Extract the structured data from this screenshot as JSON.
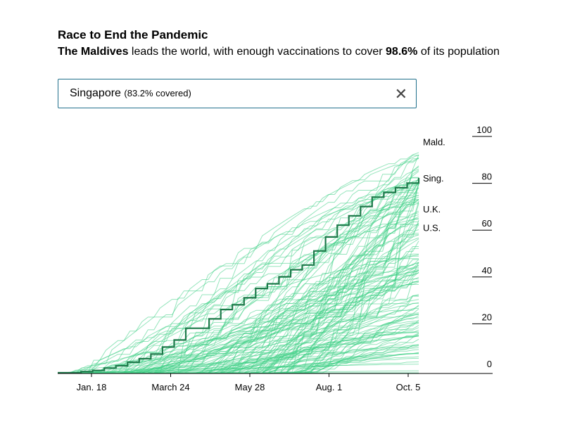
{
  "header": {
    "title": "Race to End the Pandemic",
    "subtitle_lead": "The Maldives",
    "subtitle_mid": " leads the world, with enough vaccinations to cover ",
    "subtitle_value": "98.6%",
    "subtitle_tail": " of its population"
  },
  "search": {
    "value": "Singapore",
    "detail": "(83.2% covered)",
    "close_icon": "close-icon"
  },
  "colors": {
    "background_lines": "#3ecf85",
    "highlight_line": "#1d7a4a",
    "axis": "#000000"
  },
  "chart_data": {
    "type": "line",
    "title": "Race to End the Pandemic",
    "x_tick_labels": [
      "Jan. 18",
      "March 24",
      "May 28",
      "Aug. 1",
      "Oct. 5"
    ],
    "y_tick_labels": [
      "0",
      "20",
      "40",
      "60",
      "80",
      "100"
    ],
    "ylim": [
      0,
      100
    ],
    "grid": false,
    "series": [
      {
        "name": "Sing.",
        "highlight": true,
        "values": [
          0,
          0,
          0.5,
          1,
          2,
          3,
          4.5,
          6,
          8,
          11,
          14,
          19,
          19,
          23,
          27,
          29,
          32,
          36,
          38,
          41,
          44,
          46,
          52,
          58,
          63,
          67,
          71,
          75,
          77,
          79,
          81,
          83.2
        ]
      },
      {
        "name": "Mald.",
        "final_value": 98.6
      },
      {
        "name": "U.K.",
        "final_value": 70
      },
      {
        "name": "U.S.",
        "final_value": 62
      }
    ]
  }
}
